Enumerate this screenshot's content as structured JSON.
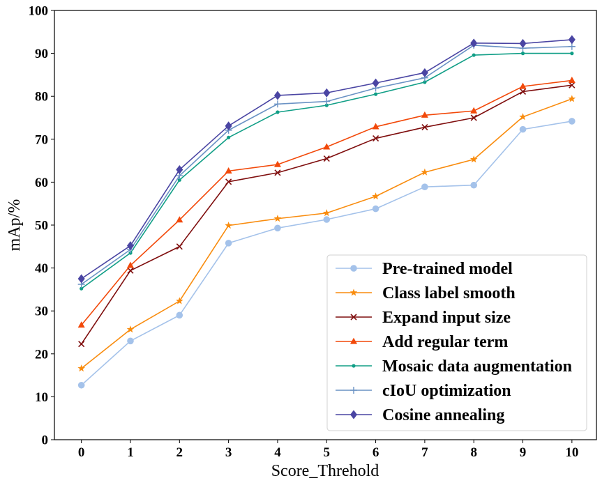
{
  "chart_data": {
    "type": "line",
    "title": "",
    "xlabel": "Score_Threhold",
    "ylabel": "mAp/%",
    "x": [
      0,
      1,
      2,
      3,
      4,
      5,
      6,
      7,
      8,
      9,
      10
    ],
    "xlim": [
      -0.55,
      10.5
    ],
    "ylim": [
      0,
      100
    ],
    "x_ticks": [
      "0",
      "1",
      "2",
      "3",
      "4",
      "5",
      "6",
      "7",
      "8",
      "9",
      "10"
    ],
    "y_ticks": [
      "0",
      "10",
      "20",
      "30",
      "40",
      "50",
      "60",
      "70",
      "80",
      "90",
      "100"
    ],
    "grid": false,
    "legend_position": "lower-right",
    "series": [
      {
        "name": "Pre-trained model",
        "color": "#a4c2ea",
        "marker": "circle",
        "values": [
          12.7,
          23.0,
          29.0,
          45.8,
          49.3,
          51.3,
          53.8,
          58.9,
          59.3,
          72.3,
          74.2
        ]
      },
      {
        "name": "Class label smooth",
        "color": "#f98c0e",
        "marker": "star",
        "values": [
          16.6,
          25.7,
          32.3,
          49.9,
          51.5,
          52.8,
          56.7,
          62.3,
          65.3,
          75.2,
          79.4
        ]
      },
      {
        "name": "Expand input size",
        "color": "#7f0e0e",
        "marker": "x",
        "values": [
          22.3,
          39.4,
          45.0,
          60.1,
          62.2,
          65.5,
          70.2,
          72.8,
          75.0,
          81.1,
          82.6
        ]
      },
      {
        "name": "Add regular term",
        "color": "#f2490a",
        "marker": "triangle",
        "values": [
          26.7,
          40.6,
          51.2,
          62.6,
          64.1,
          68.2,
          72.9,
          75.6,
          76.6,
          82.3,
          83.7
        ]
      },
      {
        "name": "Mosaic data augmentation",
        "color": "#109e86",
        "marker": "point",
        "values": [
          35.2,
          43.5,
          60.5,
          70.4,
          76.3,
          77.9,
          80.5,
          83.3,
          89.6,
          90.0,
          90.0
        ]
      },
      {
        "name": "cIoU optimization",
        "color": "#6a92c4",
        "marker": "plus",
        "values": [
          36.2,
          44.3,
          61.5,
          72.1,
          78.2,
          78.8,
          81.9,
          84.3,
          91.9,
          91.2,
          91.6
        ]
      },
      {
        "name": "Cosine annealing",
        "color": "#4a45a3",
        "marker": "diamond",
        "values": [
          37.5,
          45.2,
          62.9,
          73.1,
          80.2,
          80.8,
          83.1,
          85.5,
          92.4,
          92.3,
          93.2
        ]
      }
    ]
  }
}
